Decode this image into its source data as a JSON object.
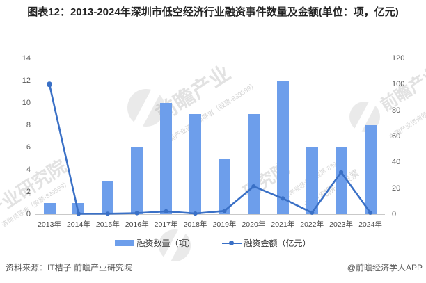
{
  "title": "图表12：2013-2024年深圳市低空经济行业融资事件数量及金额(单位：项，亿元)",
  "chart_data": {
    "type": "bar",
    "subtype": "combo-bar-line-dual-axis",
    "categories": [
      "2013年",
      "2014年",
      "2015年",
      "2016年",
      "2017年",
      "2018年",
      "2019年",
      "2020年",
      "2021年",
      "2022年",
      "2023年",
      "2024年"
    ],
    "series": [
      {
        "name": "融资数量（项）",
        "type": "bar",
        "axis": "left",
        "color": "#6d9eeb",
        "values": [
          1,
          1,
          3,
          6,
          10,
          9,
          5,
          9,
          12,
          6,
          6,
          8
        ]
      },
      {
        "name": "融资金额（亿元）",
        "type": "line",
        "axis": "right",
        "color": "#3a70c6",
        "values": [
          100,
          0.3,
          0.4,
          0.8,
          2.2,
          0.5,
          2.5,
          21.4,
          12.1,
          1.2,
          32.3,
          1.2
        ]
      }
    ],
    "left_axis": {
      "min": 0,
      "max": 14,
      "step": 2,
      "ticks": [
        0,
        2,
        4,
        6,
        8,
        10,
        12,
        14
      ]
    },
    "right_axis": {
      "min": 0,
      "max": 120,
      "step": 20,
      "ticks": [
        0,
        20,
        40,
        60,
        80,
        100,
        120
      ]
    },
    "grid": false,
    "legend_position": "bottom",
    "xlabel": "",
    "ylabel_left": "融资数量（项）",
    "ylabel_right": "融资金额（亿元）"
  },
  "footer": {
    "source": "资料来源：IT桔子 前瞻产业研究院",
    "credit": "@前瞻经济学人APP"
  },
  "watermarks": {
    "brand": "前瞻产业",
    "brand_tagline": "中国产业咨询领导者（股票·839599）",
    "institute": "产业研究院",
    "institute_short": "研究院",
    "institute_fragment": "业研究院（股票",
    "stock_fragment": "咨询领导者（股票·839599）"
  }
}
